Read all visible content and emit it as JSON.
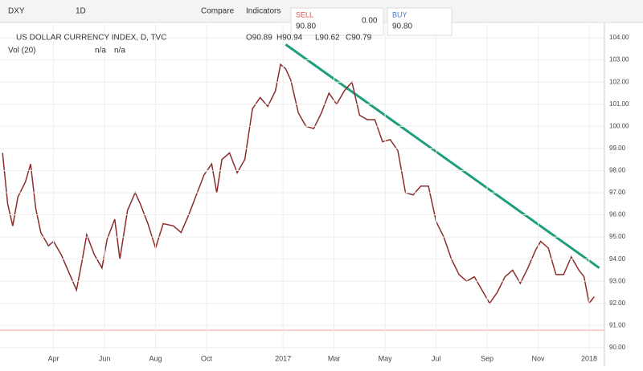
{
  "toolbar": {
    "symbol": "DXY",
    "interval": "1D",
    "compare": "Compare",
    "indicators": "Indicators",
    "sell_label": "SELL",
    "sell_price": "90.80",
    "spread": "0.00",
    "buy_label": "BUY",
    "buy_price": "90.80"
  },
  "legend": {
    "title": "US DOLLAR CURRENCY INDEX, D, TVC",
    "open": "O90.89",
    "high": "H90.94",
    "low": "L90.62",
    "close": "C90.79",
    "volume": "Vol (20)",
    "volume_value_1": "n/a",
    "volume_value_2": "n/a"
  },
  "chart_data": {
    "type": "line",
    "color": "#8b2d2d",
    "x": [
      1.0,
      1.2,
      1.4,
      1.6,
      1.9,
      2.1,
      2.3,
      2.5,
      2.8,
      3.0,
      3.3,
      3.6,
      3.9,
      4.1,
      4.3,
      4.6,
      4.9,
      5.1,
      5.4,
      5.6,
      5.9,
      6.2,
      6.4,
      6.7,
      7.0,
      7.3,
      7.7,
      8.0,
      8.3,
      8.6,
      8.9,
      9.2,
      9.4,
      9.6,
      9.9,
      10.2,
      10.5,
      10.8,
      11.1,
      11.4,
      11.7,
      11.9,
      12.1,
      12.3,
      12.6,
      12.9,
      13.2,
      13.5,
      13.8,
      14.1,
      14.4,
      14.7,
      15.0,
      15.3,
      15.6,
      15.9,
      16.2,
      16.5,
      16.8,
      17.1,
      17.4,
      17.7,
      18.0,
      18.3,
      18.6,
      18.9,
      19.2,
      19.5,
      19.8,
      20.1,
      20.4,
      20.7,
      21.0,
      21.3,
      21.6,
      21.9,
      22.1,
      22.4,
      22.7,
      23.0,
      23.3,
      23.6,
      23.8,
      24.0,
      24.2
    ],
    "values": [
      98.8,
      96.5,
      95.5,
      96.8,
      97.5,
      98.3,
      96.3,
      95.2,
      94.6,
      94.8,
      94.2,
      93.4,
      92.6,
      93.8,
      95.1,
      94.2,
      93.6,
      94.9,
      95.8,
      94.0,
      96.2,
      97.0,
      96.5,
      95.6,
      94.5,
      95.6,
      95.5,
      95.2,
      96.0,
      96.9,
      97.8,
      98.3,
      97.0,
      98.5,
      98.8,
      97.9,
      98.5,
      100.8,
      101.3,
      100.9,
      101.6,
      102.8,
      102.6,
      102.1,
      100.6,
      100.0,
      99.9,
      100.6,
      101.5,
      101.0,
      101.6,
      102.0,
      100.5,
      100.3,
      100.3,
      99.3,
      99.4,
      98.9,
      97.0,
      96.9,
      97.3,
      97.3,
      95.7,
      95.0,
      94.0,
      93.3,
      93.0,
      93.2,
      92.6,
      92.0,
      92.5,
      93.2,
      93.5,
      92.9,
      93.6,
      94.4,
      94.8,
      94.5,
      93.3,
      93.3,
      94.1,
      93.5,
      93.2,
      92.0,
      92.3
    ],
    "xlim": [
      0.9,
      24.6
    ],
    "ylim": [
      89.85,
      104.62
    ],
    "xticks": [
      {
        "value": 3,
        "label": "Apr"
      },
      {
        "value": 5,
        "label": "Jun"
      },
      {
        "value": 7,
        "label": "Aug"
      },
      {
        "value": 9,
        "label": "Oct"
      },
      {
        "value": 12,
        "label": "2017"
      },
      {
        "value": 14,
        "label": "Mar"
      },
      {
        "value": 16,
        "label": "May"
      },
      {
        "value": 18,
        "label": "Jul"
      },
      {
        "value": 20,
        "label": "Sep"
      },
      {
        "value": 22,
        "label": "Nov"
      },
      {
        "value": 24,
        "label": "2018"
      }
    ],
    "yticks": [
      {
        "value": 90,
        "label": "90.00"
      },
      {
        "value": 91,
        "label": "91.00"
      },
      {
        "value": 92,
        "label": "92.00"
      },
      {
        "value": 93,
        "label": "93.00"
      },
      {
        "value": 94,
        "label": "94.00"
      },
      {
        "value": 95,
        "label": "95.00"
      },
      {
        "value": 96,
        "label": "96.00"
      },
      {
        "value": 97,
        "label": "97.00"
      },
      {
        "value": 98,
        "label": "98.00"
      },
      {
        "value": 99,
        "label": "99.00"
      },
      {
        "value": 100,
        "label": "100.00"
      },
      {
        "value": 101,
        "label": "101.00"
      },
      {
        "value": 102,
        "label": "102.00"
      },
      {
        "value": 103,
        "label": "103.00"
      },
      {
        "value": 104,
        "label": "104.00"
      }
    ],
    "grid": true,
    "trendline": {
      "x": [
        12.1,
        24.4
      ],
      "values": [
        103.7,
        93.6
      ],
      "color": "#1e9e7c"
    },
    "price_line": {
      "value": 90.79,
      "color": "#f0a0a0"
    }
  }
}
